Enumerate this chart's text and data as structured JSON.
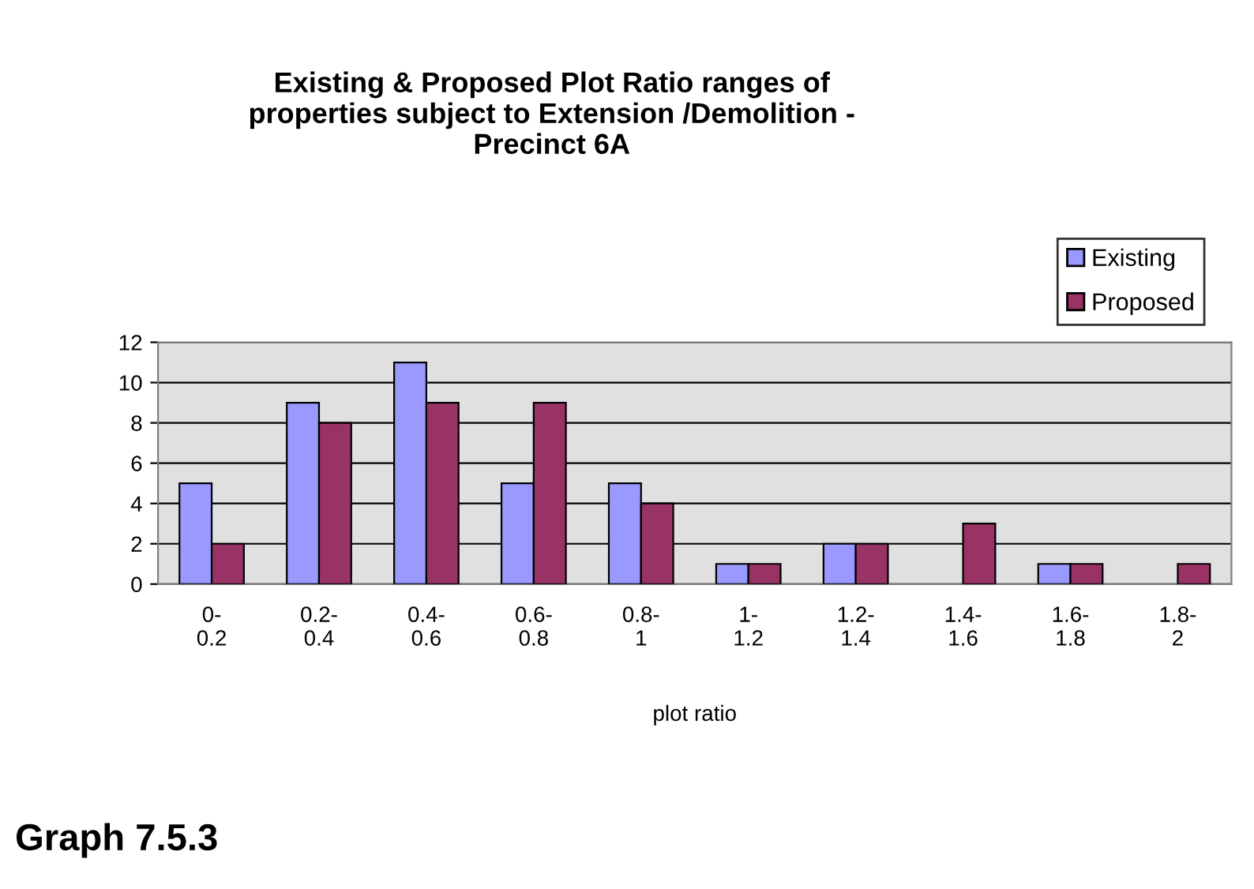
{
  "chart_data": {
    "type": "bar",
    "title": "Existing & Proposed Plot Ratio ranges of\nproperties subject to Extension /Demolition -\nPrecinct 6A",
    "xlabel": "plot ratio",
    "categories": [
      "0-0.2",
      "0.2-0.4",
      "0.4-0.6",
      "0.6-0.8",
      "0.8-1",
      "1-1.2",
      "1.2-1.4",
      "1.4-1.6",
      "1.6-1.8",
      "1.8-2"
    ],
    "series": [
      {
        "name": "Existing",
        "color": "#9999ff",
        "values": [
          5,
          9,
          11,
          5,
          5,
          1,
          2,
          0,
          1,
          0
        ]
      },
      {
        "name": "Proposed",
        "color": "#993366",
        "values": [
          2,
          8,
          9,
          9,
          4,
          1,
          2,
          3,
          1,
          1
        ]
      }
    ],
    "ylim": [
      0,
      12
    ],
    "yticks": [
      0,
      2,
      4,
      6,
      8,
      10,
      12
    ],
    "grid": "y",
    "legend": "top right",
    "annotations": [
      "Graph 7.5.3"
    ]
  }
}
